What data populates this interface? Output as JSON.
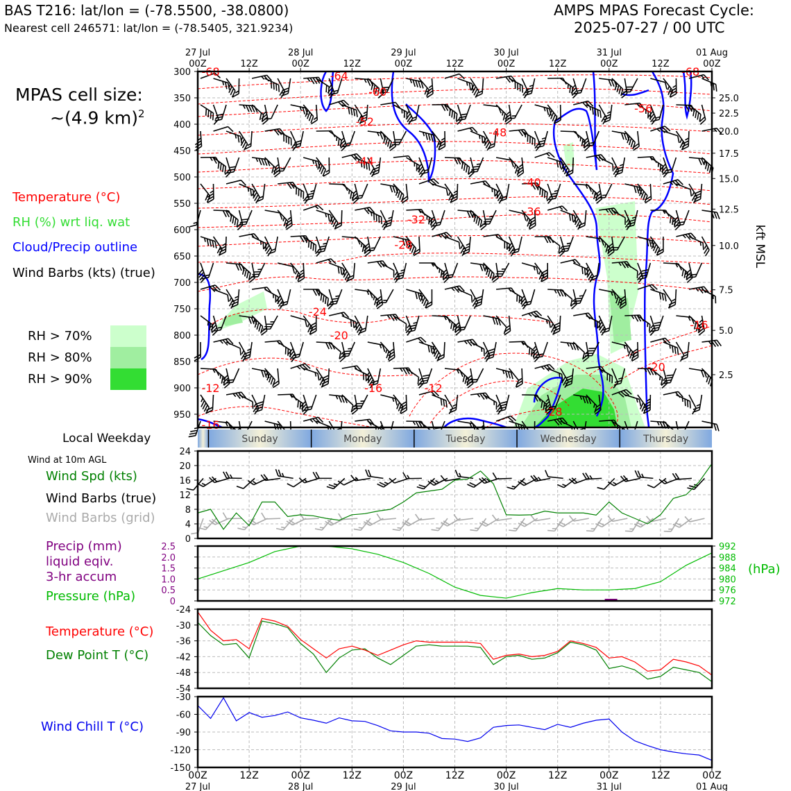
{
  "header": {
    "station_title": "BAS T216: lat/lon = (-78.5500, -38.0800)",
    "nearest_cell": "Nearest cell 246571: lat/lon = (-78.5405, 321.9234)",
    "forecast_title": "AMPS MPAS Forecast Cycle:",
    "forecast_cycle": "2025-07-27 / 00 UTC"
  },
  "left_panel": {
    "cell_size_label": "MPAS cell size:",
    "cell_size_value": "~(4.9 km)",
    "cell_size_exp": "2",
    "legend_temperature": "Temperature (°C)",
    "legend_rh": "RH (%) wrt liq. wat",
    "legend_cloud": "Cloud/Precip outline",
    "legend_wind": "Wind Barbs (kts) (true)",
    "rh_gt70": "RH > 70%",
    "rh_gt80": "RH > 80%",
    "rh_gt90": "RH > 90%",
    "local_weekday": "Local Weekday",
    "wind_10m": "Wind at 10m AGL",
    "wind_spd_label": "Wind Spd (kts)",
    "wind_barbs_true": "Wind Barbs (true)",
    "wind_barbs_grid": "Wind Barbs (grid)",
    "precip_line1": "Precip (mm)",
    "precip_line2": "liquid eqiv.",
    "precip_line3": "3-hr accum",
    "pressure_label": "Pressure (hPa)",
    "temp_label": "Temperature (°C)",
    "dewpoint_label": "Dew Point T (°C)",
    "windchill_label": "Wind Chill T (°C)"
  },
  "colors": {
    "temperature": "#ff0000",
    "rh": "#33dd33",
    "cloud": "#0000ff",
    "wind": "#000000",
    "wind_grid": "#aaaaaa",
    "precip": "#800080",
    "pressure": "#00bb00",
    "dewpoint": "#008000",
    "windchill": "#0000ee",
    "rh70": "#ccffcc",
    "rh80": "#a0eea0",
    "rh90": "#33dd33",
    "weekday_band": "#7fa8e0"
  },
  "chart_data": {
    "time_axis": {
      "top_ticks": [
        "00Z",
        "12Z",
        "00Z",
        "12Z",
        "00Z",
        "12Z",
        "00Z",
        "12Z",
        "00Z",
        "12Z",
        "00Z"
      ],
      "top_dates": [
        "27 Jul",
        "",
        "28 Jul",
        "",
        "29 Jul",
        "",
        "30 Jul",
        "",
        "31 Jul",
        "",
        "01 Aug"
      ],
      "hours": [
        0,
        12,
        24,
        36,
        48,
        60,
        72,
        84,
        96,
        108,
        120
      ]
    },
    "weekdays": [
      "Sunday",
      "Monday",
      "Tuesday",
      "Wednesday",
      "Thursday"
    ],
    "weekday_boundaries_hours": [
      2.5,
      26.5,
      50.5,
      74.5,
      98.5
    ],
    "cross_section": {
      "type": "heatmap",
      "pressure_ticks": [
        300,
        350,
        400,
        450,
        500,
        550,
        600,
        650,
        700,
        750,
        800,
        850,
        900,
        950
      ],
      "ylim_hpa": [
        300,
        975
      ],
      "kft_ticks": [
        "25.0",
        "22.5",
        "20.0",
        "17.5",
        "15.0",
        "12.5",
        "10.0",
        "7.5",
        "5.0",
        "2.5"
      ],
      "kft_pressures": [
        350,
        379,
        413,
        455,
        503,
        561,
        630,
        714,
        791,
        875
      ],
      "right_ylabel": "kft MSL",
      "temperature_labels": [
        {
          "text": "-68",
          "hour": 3,
          "p": 300
        },
        {
          "text": "-64",
          "hour": 33,
          "p": 308
        },
        {
          "text": "-60",
          "hour": 42,
          "p": 338
        },
        {
          "text": "-52",
          "hour": 39,
          "p": 395
        },
        {
          "text": "-48",
          "hour": 70,
          "p": 415
        },
        {
          "text": "-44",
          "hour": 39,
          "p": 470
        },
        {
          "text": "-40",
          "hour": 78,
          "p": 510
        },
        {
          "text": "-36",
          "hour": 78,
          "p": 565
        },
        {
          "text": "-32",
          "hour": 51,
          "p": 580
        },
        {
          "text": "-28",
          "hour": 48,
          "p": 628
        },
        {
          "text": "-24",
          "hour": 28,
          "p": 755
        },
        {
          "text": "-20",
          "hour": 33,
          "p": 800
        },
        {
          "text": "-16",
          "hour": 41,
          "p": 900
        },
        {
          "text": "-12",
          "hour": 55,
          "p": 900
        },
        {
          "text": "-12",
          "hour": 3,
          "p": 900
        },
        {
          "text": "-28",
          "hour": 83,
          "p": 945
        },
        {
          "text": "-16",
          "hour": 3,
          "p": 970
        },
        {
          "text": "-20",
          "hour": 107,
          "p": 860
        },
        {
          "text": "-16",
          "hour": 117,
          "p": 780
        },
        {
          "text": "-56",
          "hour": 104,
          "p": 370
        },
        {
          "text": "-68",
          "hour": 115,
          "p": 300
        }
      ]
    },
    "wind_speed": {
      "type": "line",
      "ylim": [
        0,
        24
      ],
      "yticks": [
        0,
        4,
        8,
        12,
        16,
        20,
        24
      ],
      "x_hours": [
        0,
        3,
        6,
        9,
        12,
        15,
        18,
        21,
        24,
        27,
        30,
        33,
        36,
        39,
        42,
        45,
        48,
        51,
        54,
        57,
        60,
        63,
        66,
        69,
        72,
        75,
        78,
        81,
        84,
        87,
        90,
        93,
        96,
        99,
        102,
        105,
        108,
        111,
        114,
        117,
        120
      ],
      "values": [
        7,
        8,
        2.5,
        7,
        3.5,
        10,
        10,
        6,
        6.5,
        6.2,
        5.5,
        5,
        6.5,
        6.8,
        7.5,
        8,
        10,
        12.5,
        13,
        13.5,
        16,
        16.3,
        18.5,
        15,
        6.5,
        6.4,
        6.5,
        7.5,
        7,
        7,
        7,
        6.4,
        10,
        7,
        5.5,
        4,
        6.5,
        11,
        12,
        15.5,
        20.5
      ]
    },
    "pressure": {
      "type": "line",
      "ylim": [
        972,
        992
      ],
      "yticks": [
        972,
        976,
        980,
        984,
        988,
        992
      ],
      "precip_yticks": [
        0,
        0.5,
        1.0,
        1.5,
        2.0,
        2.5
      ],
      "x_hours": [
        0,
        6,
        12,
        18,
        24,
        30,
        36,
        42,
        48,
        54,
        60,
        66,
        72,
        78,
        84,
        90,
        96,
        102,
        108,
        114,
        120
      ],
      "values": [
        980,
        983,
        986,
        990,
        992,
        992,
        991,
        989,
        986,
        982,
        977,
        974,
        973,
        975,
        976.5,
        976,
        976,
        976.5,
        979,
        985,
        989.5
      ]
    },
    "temperature": {
      "type": "line",
      "ylim": [
        -54,
        -24
      ],
      "yticks": [
        -24,
        -30,
        -36,
        -42,
        -48,
        -54
      ],
      "x_hours": [
        0,
        3,
        6,
        9,
        12,
        15,
        18,
        21,
        24,
        27,
        30,
        33,
        36,
        39,
        42,
        45,
        48,
        51,
        54,
        57,
        60,
        63,
        66,
        69,
        72,
        75,
        78,
        81,
        84,
        87,
        90,
        93,
        96,
        99,
        102,
        105,
        108,
        111,
        114,
        117,
        120
      ],
      "values": [
        -25,
        -32,
        -36,
        -35.5,
        -39,
        -27.5,
        -28.5,
        -30.5,
        -35.5,
        -39,
        -42.5,
        -39,
        -38,
        -39.5,
        -41.5,
        -39.5,
        -37.5,
        -36,
        -36.5,
        -36.5,
        -36.5,
        -36.5,
        -37,
        -43,
        -41.5,
        -41,
        -42,
        -41.5,
        -40,
        -36,
        -37,
        -38.5,
        -42.5,
        -42,
        -44,
        -47.5,
        -47,
        -43,
        -44,
        -45.5,
        -49
      ]
    },
    "dewpoint": {
      "type": "line",
      "x_hours": [
        0,
        3,
        6,
        9,
        12,
        15,
        18,
        21,
        24,
        27,
        30,
        33,
        36,
        39,
        42,
        45,
        48,
        51,
        54,
        57,
        60,
        63,
        66,
        69,
        72,
        75,
        78,
        81,
        84,
        87,
        90,
        93,
        96,
        99,
        102,
        105,
        108,
        111,
        114,
        117,
        120
      ],
      "values": [
        -29,
        -34,
        -37.5,
        -37,
        -42.5,
        -28.5,
        -29.5,
        -31,
        -37,
        -41,
        -48,
        -42.5,
        -39.5,
        -39,
        -42.5,
        -45,
        -41.5,
        -38,
        -37.5,
        -38,
        -38,
        -38,
        -38.5,
        -45,
        -42,
        -41.5,
        -43,
        -42.5,
        -40.5,
        -36.5,
        -37.5,
        -39.5,
        -46.5,
        -45.5,
        -47,
        -50.5,
        -49.5,
        -46,
        -47,
        -48,
        -51.5
      ]
    },
    "wind_chill": {
      "type": "line",
      "ylim": [
        -150,
        -30
      ],
      "yticks": [
        -30,
        -60,
        -90,
        -120,
        -150
      ],
      "x_hours": [
        0,
        3,
        6,
        9,
        12,
        15,
        18,
        21,
        24,
        27,
        30,
        33,
        36,
        39,
        42,
        45,
        48,
        51,
        54,
        57,
        60,
        63,
        66,
        69,
        72,
        75,
        78,
        81,
        84,
        87,
        90,
        93,
        96,
        99,
        102,
        105,
        108,
        111,
        114,
        117,
        120
      ],
      "values": [
        -45,
        -67,
        -32,
        -71,
        -57,
        -65,
        -62,
        -56,
        -66,
        -70,
        -75,
        -66,
        -71,
        -72,
        -79,
        -88,
        -90,
        -90,
        -92,
        -101,
        -102,
        -106,
        -100,
        -82,
        -79,
        -78,
        -82,
        -86,
        -77,
        -82,
        -75,
        -70,
        -68,
        -90,
        -105,
        -113,
        -120,
        -124,
        -127,
        -129,
        -138
      ]
    }
  }
}
